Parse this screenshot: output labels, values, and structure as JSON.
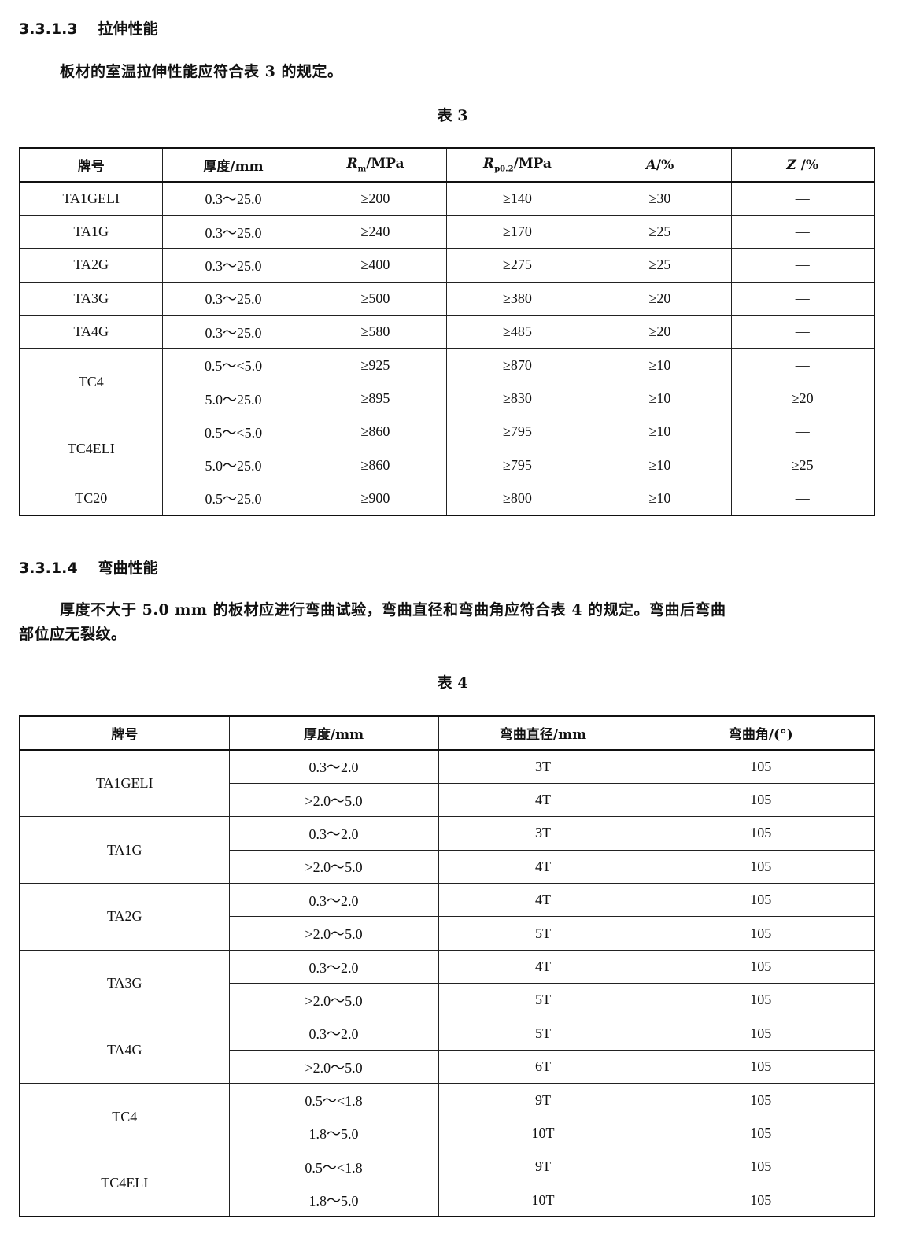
{
  "section1": {
    "number": "3.3.1.3",
    "title": "拉伸性能",
    "text": "板材的室温拉伸性能应符合表 3 的规定。",
    "caption": "表 3"
  },
  "table3": {
    "headers": [
      {
        "main": "牌号"
      },
      {
        "main": "厚度/mm"
      },
      {
        "sym": "R",
        "sub": "m",
        "rest": "/MPa"
      },
      {
        "sym": "R",
        "sub": "p0.2",
        "rest": "/MPa"
      },
      {
        "sym": "A",
        "rest": "/%"
      },
      {
        "sym": "Z",
        "rest": " /%"
      }
    ],
    "groups": [
      {
        "grade": "TA1GELI",
        "rows": [
          [
            "0.3～25.0",
            "≥200",
            "≥140",
            "≥30",
            "—"
          ]
        ]
      },
      {
        "grade": "TA1G",
        "rows": [
          [
            "0.3～25.0",
            "≥240",
            "≥170",
            "≥25",
            "—"
          ]
        ]
      },
      {
        "grade": "TA2G",
        "rows": [
          [
            "0.3～25.0",
            "≥400",
            "≥275",
            "≥25",
            "—"
          ]
        ]
      },
      {
        "grade": "TA3G",
        "rows": [
          [
            "0.3～25.0",
            "≥500",
            "≥380",
            "≥20",
            "—"
          ]
        ]
      },
      {
        "grade": "TA4G",
        "rows": [
          [
            "0.3～25.0",
            "≥580",
            "≥485",
            "≥20",
            "—"
          ]
        ]
      },
      {
        "grade": "TC4",
        "rows": [
          [
            "0.5～<5.0",
            "≥925",
            "≥870",
            "≥10",
            "—"
          ],
          [
            "5.0～25.0",
            "≥895",
            "≥830",
            "≥10",
            "≥20"
          ]
        ]
      },
      {
        "grade": "TC4ELI",
        "rows": [
          [
            "0.5～<5.0",
            "≥860",
            "≥795",
            "≥10",
            "—"
          ],
          [
            "5.0～25.0",
            "≥860",
            "≥795",
            "≥10",
            "≥25"
          ]
        ]
      },
      {
        "grade": "TC20",
        "rows": [
          [
            "0.5～25.0",
            "≥900",
            "≥800",
            "≥10",
            "—"
          ]
        ]
      }
    ]
  },
  "section2": {
    "number": "3.3.1.4",
    "title": "弯曲性能",
    "text_line1": "厚度不大于 5.0 mm 的板材应进行弯曲试验，弯曲直径和弯曲角应符合表 4 的规定。弯曲后弯曲",
    "text_line2": "部位应无裂纹。",
    "caption": "表 4"
  },
  "table4": {
    "headers": [
      "牌号",
      "厚度/mm",
      "弯曲直径/mm",
      "弯曲角/(°)"
    ],
    "groups": [
      {
        "grade": "TA1GELI",
        "rows": [
          [
            "0.3～2.0",
            "3T",
            "105"
          ],
          [
            ">2.0～5.0",
            "4T",
            "105"
          ]
        ]
      },
      {
        "grade": "TA1G",
        "rows": [
          [
            "0.3～2.0",
            "3T",
            "105"
          ],
          [
            ">2.0～5.0",
            "4T",
            "105"
          ]
        ]
      },
      {
        "grade": "TA2G",
        "rows": [
          [
            "0.3～2.0",
            "4T",
            "105"
          ],
          [
            ">2.0～5.0",
            "5T",
            "105"
          ]
        ]
      },
      {
        "grade": "TA3G",
        "rows": [
          [
            "0.3～2.0",
            "4T",
            "105"
          ],
          [
            ">2.0～5.0",
            "5T",
            "105"
          ]
        ]
      },
      {
        "grade": "TA4G",
        "rows": [
          [
            "0.3～2.0",
            "5T",
            "105"
          ],
          [
            ">2.0～5.0",
            "6T",
            "105"
          ]
        ]
      },
      {
        "grade": "TC4",
        "rows": [
          [
            "0.5～<1.8",
            "9T",
            "105"
          ],
          [
            "1.8～5.0",
            "10T",
            "105"
          ]
        ]
      },
      {
        "grade": "TC4ELI",
        "rows": [
          [
            "0.5～<1.8",
            "9T",
            "105"
          ],
          [
            "1.8～5.0",
            "10T",
            "105"
          ]
        ]
      }
    ]
  }
}
